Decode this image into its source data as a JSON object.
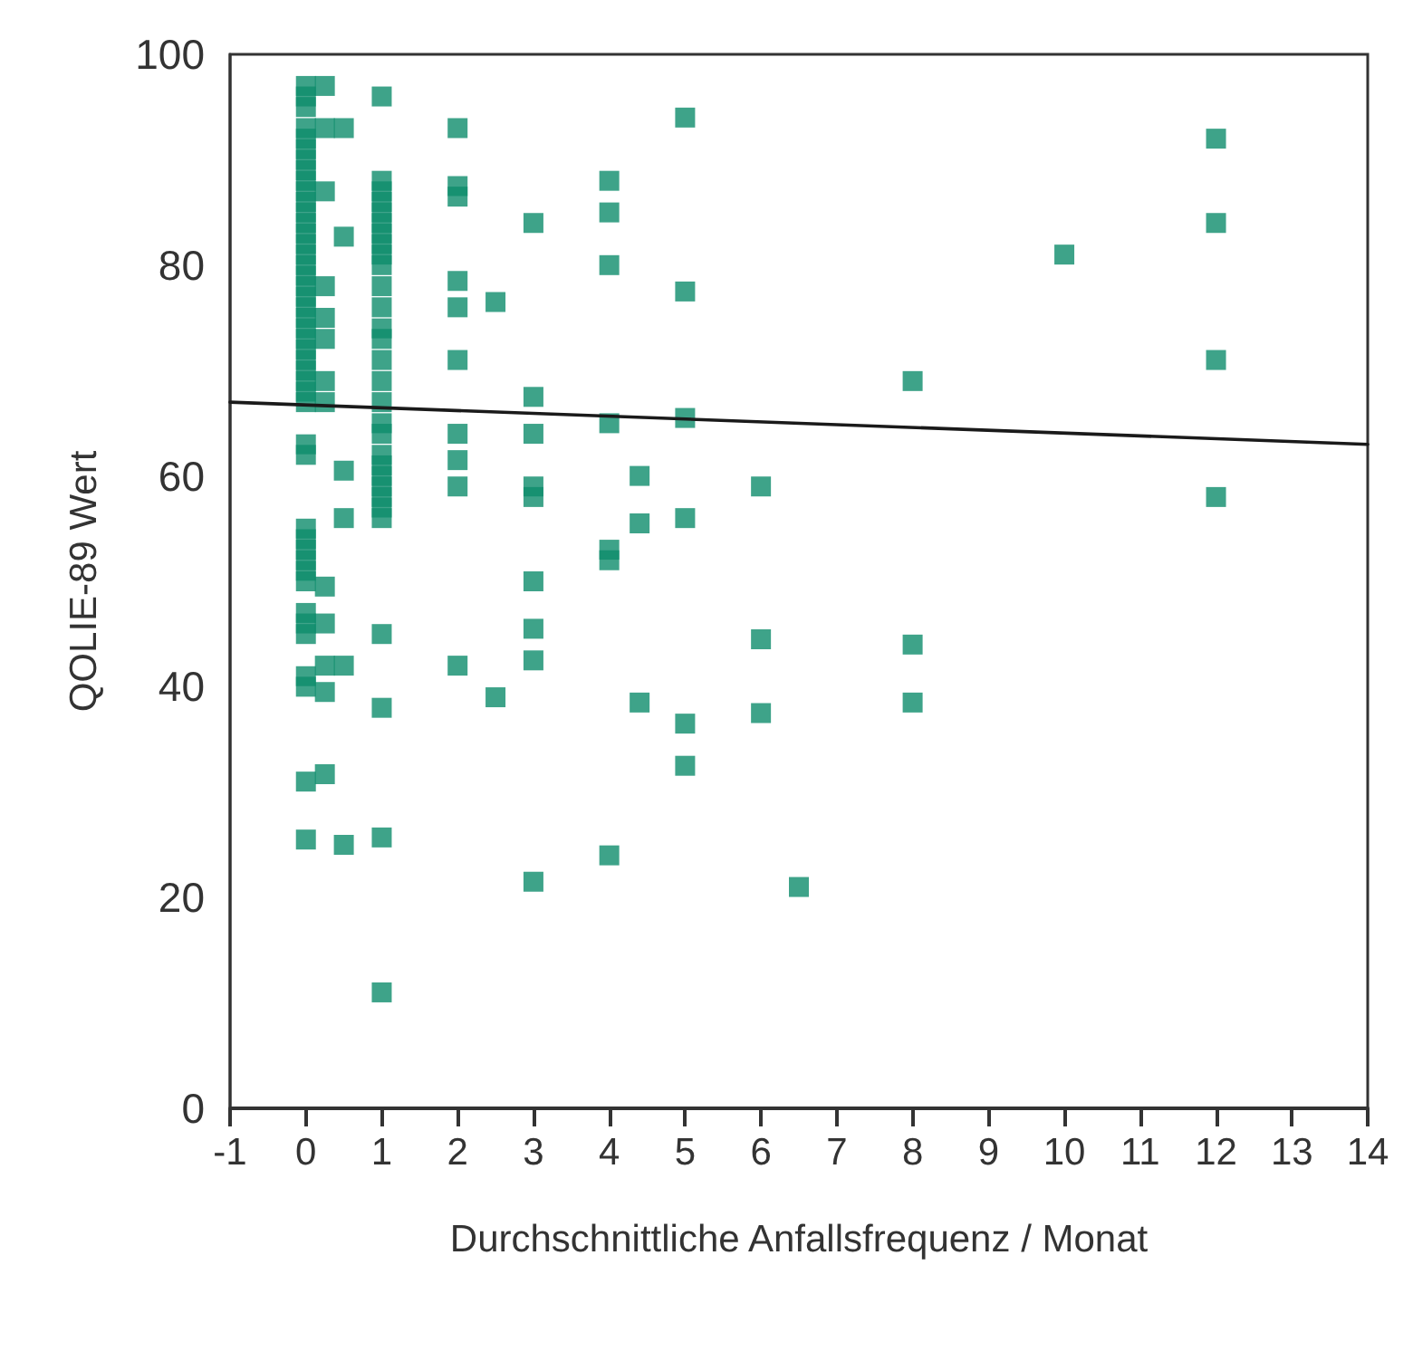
{
  "chart_data": {
    "type": "scatter",
    "xlabel": "Durchschnittliche Anfallsfrequenz / Monat",
    "ylabel": "QOLIE-89 Wert",
    "xlim": [
      -1,
      14
    ],
    "xticks": [
      -1,
      0,
      1,
      2,
      3,
      4,
      5,
      6,
      7,
      8,
      9,
      10,
      11,
      12,
      13,
      14
    ],
    "ylim": [
      0,
      100
    ],
    "yticks": [
      0,
      20,
      40,
      60,
      80,
      100
    ],
    "grid": false,
    "marker": "square",
    "series": [
      {
        "color": "#0e8c6c",
        "x": [
          0,
          0,
          0,
          0,
          0,
          0,
          0,
          0,
          0,
          0,
          0,
          0,
          0,
          0,
          0,
          0,
          0,
          0,
          0,
          0,
          0,
          0,
          0,
          0,
          0,
          0,
          0,
          0,
          0,
          0,
          0,
          0,
          0,
          0,
          0,
          0,
          0,
          0,
          0,
          0,
          0,
          0,
          0,
          0,
          0,
          0.25,
          0.25,
          0.25,
          0.25,
          0.25,
          0.25,
          0.25,
          0.25,
          0.25,
          0.25,
          0.25,
          0.25,
          0.25,
          0.5,
          0.5,
          0.5,
          0.5,
          0.5,
          0.5,
          1,
          1,
          1,
          1,
          1,
          1,
          1,
          1,
          1,
          1,
          1,
          1,
          1,
          1,
          1,
          1,
          1,
          1,
          1,
          1,
          1,
          1,
          1,
          1,
          1,
          1,
          1,
          1,
          1,
          1,
          2,
          2,
          2,
          2,
          2,
          2,
          2,
          2,
          2,
          2,
          2.5,
          2.5,
          3,
          3,
          3,
          3,
          3,
          3,
          3,
          3,
          3,
          4,
          4,
          4,
          4,
          4,
          4,
          4,
          4.4,
          4.4,
          4.4,
          5,
          5,
          5,
          5,
          5,
          5,
          6,
          6,
          6,
          6.5,
          8,
          8,
          8,
          10,
          12,
          12,
          12,
          12
        ],
        "values": [
          97,
          96,
          95,
          93,
          92,
          91,
          90,
          89,
          88,
          87,
          86,
          85,
          84,
          83,
          82,
          81,
          80,
          79,
          78,
          77,
          76,
          75,
          74,
          73,
          72,
          71,
          70,
          69,
          68,
          67,
          63,
          62,
          55,
          54,
          53,
          52,
          51,
          50,
          47,
          46,
          45,
          41,
          40,
          31,
          25.5,
          97,
          93,
          87,
          78,
          75,
          73,
          69,
          67,
          49.5,
          46,
          42,
          39.5,
          31.7,
          93,
          82.7,
          60.5,
          56,
          42,
          25,
          96,
          88,
          87,
          86,
          85,
          84,
          83,
          82,
          81,
          80,
          78,
          76,
          74,
          73,
          71,
          69,
          67,
          65,
          64,
          62,
          61,
          60,
          59,
          58,
          57,
          56,
          45,
          38,
          25.7,
          11,
          93,
          87.5,
          86.5,
          78.5,
          76,
          71,
          64,
          61.5,
          59,
          42,
          76.5,
          39,
          84,
          67.5,
          64,
          59,
          58,
          50,
          45.5,
          42.5,
          21.5,
          88,
          85,
          80,
          65,
          53,
          52,
          24,
          60,
          55.5,
          38.5,
          94,
          77.5,
          65.5,
          56,
          36.5,
          32.5,
          59,
          44.5,
          37.5,
          21,
          69,
          44,
          38.5,
          81,
          92,
          84,
          71,
          58
        ]
      },
      {
        "type": "line",
        "color": "#1a1a1a",
        "line_style": "solid",
        "marker": "none",
        "x": [
          -1,
          14
        ],
        "values": [
          67,
          63
        ]
      }
    ]
  }
}
